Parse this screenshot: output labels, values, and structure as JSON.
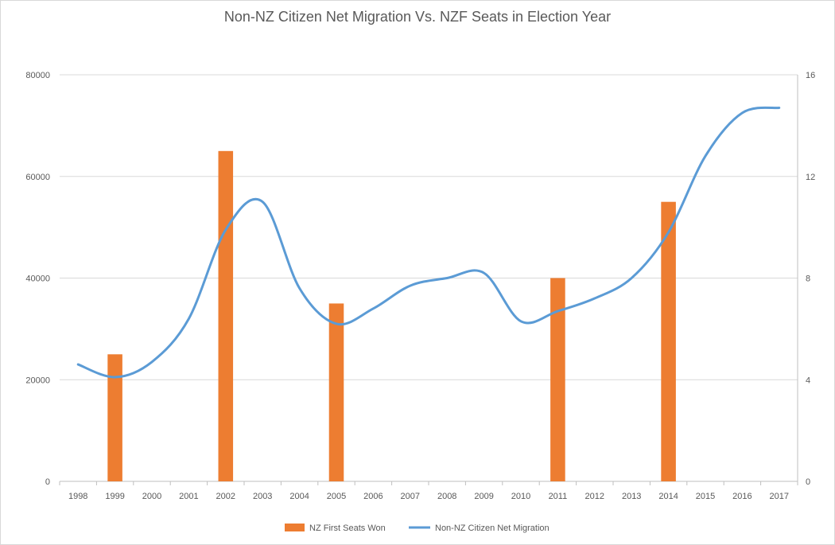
{
  "chart_data": {
    "type": "bar",
    "title": "Non-NZ Citizen Net Migration Vs. NZF Seats in Election Year",
    "categories": [
      "1998",
      "1999",
      "2000",
      "2001",
      "2002",
      "2003",
      "2004",
      "2005",
      "2006",
      "2007",
      "2008",
      "2009",
      "2010",
      "2011",
      "2012",
      "2013",
      "2014",
      "2015",
      "2016",
      "2017"
    ],
    "y_left": {
      "min": 0,
      "max": 80000,
      "ticks": [
        "0",
        "20000",
        "40000",
        "60000",
        "80000"
      ]
    },
    "y_right": {
      "min": 0,
      "max": 16,
      "ticks": [
        "0",
        "4",
        "8",
        "12",
        "16"
      ]
    },
    "grid": true,
    "legend_position": "bottom",
    "series": [
      {
        "name": "NZ First Seats Won",
        "type": "bar",
        "axis": "right",
        "color": "#ed7d31",
        "values": [
          null,
          5,
          null,
          null,
          13,
          null,
          null,
          7,
          null,
          null,
          null,
          null,
          null,
          8,
          null,
          null,
          11,
          null,
          null,
          null
        ]
      },
      {
        "name": "Non-NZ Citizen Net Migration",
        "type": "line",
        "smooth": true,
        "axis": "left",
        "color": "#5b9bd5",
        "values": [
          23000,
          20500,
          23500,
          32000,
          49500,
          55000,
          38000,
          31000,
          34000,
          38500,
          40000,
          41000,
          31500,
          33500,
          36000,
          40000,
          49000,
          64000,
          72500,
          73500
        ]
      }
    ]
  }
}
